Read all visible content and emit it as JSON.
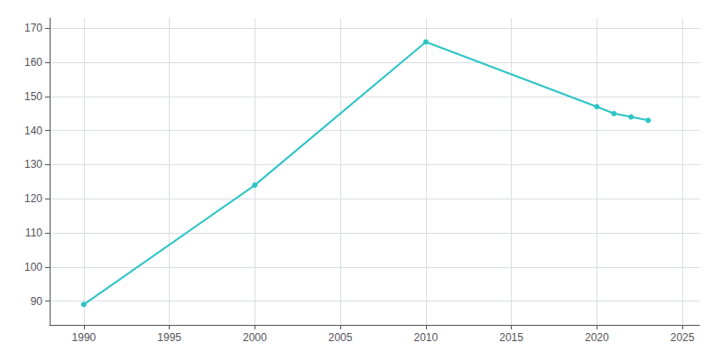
{
  "chart_data": {
    "type": "line",
    "x": [
      1990,
      2000,
      2010,
      2020,
      2021,
      2022,
      2023
    ],
    "values": [
      89,
      124,
      166,
      147,
      145,
      144,
      143
    ],
    "color": "#2EC4C4",
    "marker": "circle",
    "xlim": [
      1988,
      2026
    ],
    "xticks": [
      1990,
      1995,
      2000,
      2005,
      2010,
      2015,
      2020,
      2025
    ],
    "ylim": [
      83,
      173
    ],
    "yticks": [
      90,
      100,
      110,
      120,
      130,
      140,
      150,
      160,
      170
    ],
    "grid": true
  }
}
